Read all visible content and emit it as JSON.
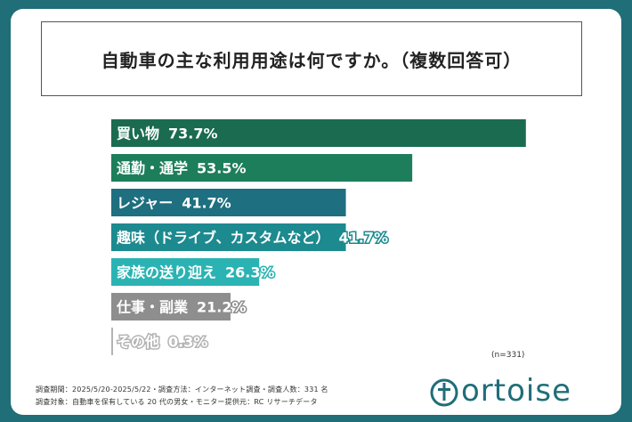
{
  "chart_data": {
    "type": "bar",
    "orientation": "horizontal",
    "title": "自動車の主な利用用途は何ですか。（複数回答可）",
    "categories": [
      "買い物",
      "通勤・通学",
      "レジャー",
      "趣味（ドライブ、カスタムなど）",
      "家族の送り迎え",
      "仕事・副業",
      "その他"
    ],
    "values": [
      73.7,
      53.5,
      41.7,
      41.7,
      26.3,
      21.2,
      0.3
    ],
    "value_labels": [
      "73.7%",
      "53.5%",
      "41.7%",
      "41.7%",
      "26.3%",
      "21.2%",
      "0.3%"
    ],
    "colors": [
      "#1a6b50",
      "#1d7e5c",
      "#1e6f80",
      "#1c8a8f",
      "#2bb3b3",
      "#8e8e8e",
      "#b4b4b4"
    ],
    "xlim": [
      0,
      100
    ],
    "grid": false,
    "legend": "none"
  },
  "sample_note": "(n=331)",
  "footnotes": [
    "調査期間：2025/5/20-2025/5/22・調査方法：インターネット調査・調査人数：331 名",
    "調査対象：自動車を保有している 20 代の男女・モニター提供元：RC リサーチデータ"
  ],
  "brand": {
    "logo_text": "ortoise",
    "logo_mark": "t",
    "accent": "#1f6e78"
  }
}
